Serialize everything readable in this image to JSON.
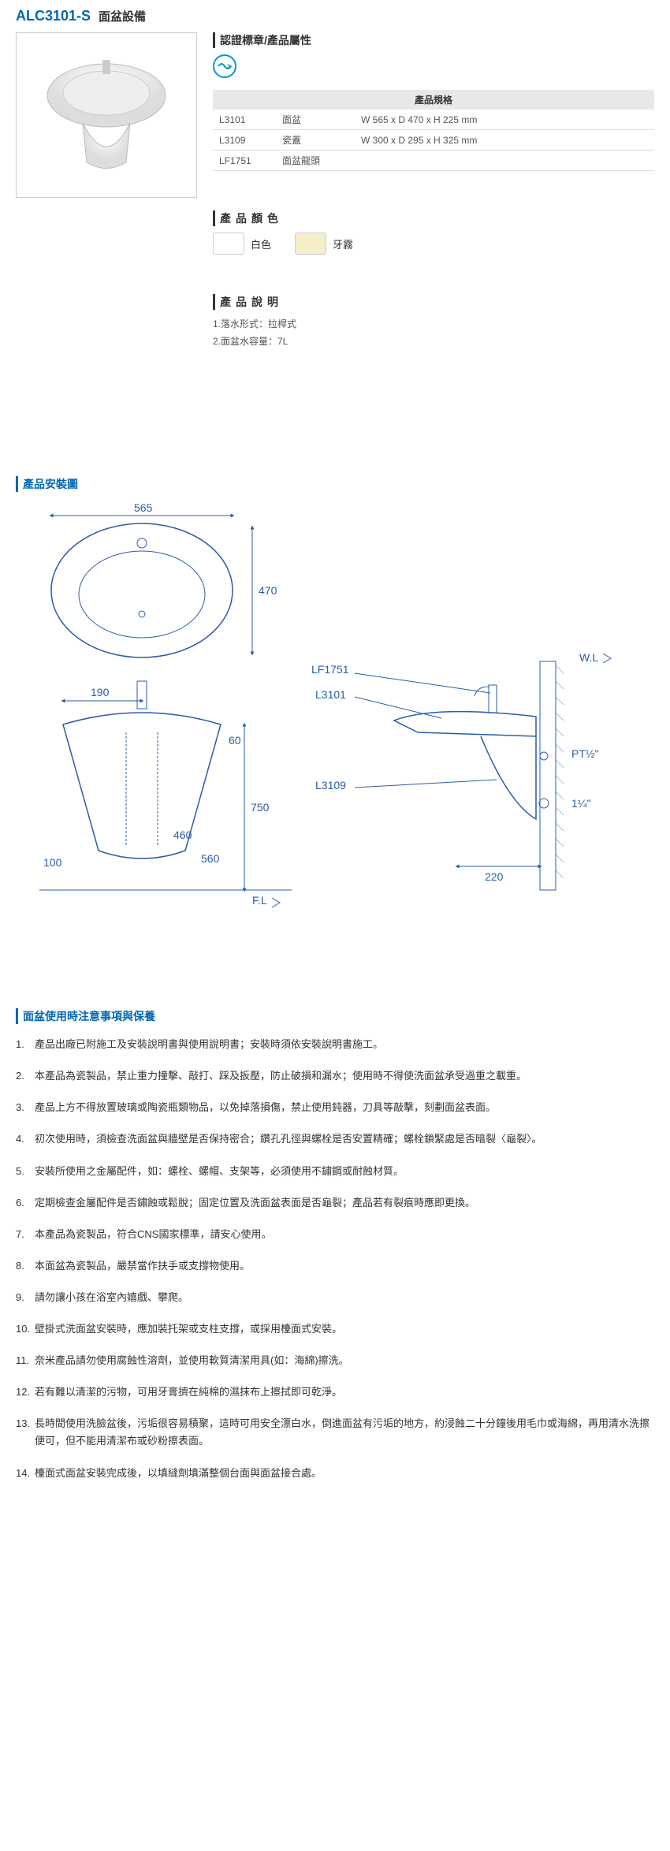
{
  "header": {
    "code": "ALC3101-S",
    "title": "面盆設備"
  },
  "cert_heading": "認證標章/產品屬性",
  "spec_table": {
    "header": "產品規格",
    "rows": [
      {
        "code": "L3101",
        "name": "面盆",
        "dim": "W 565 x D 470 x H 225 mm"
      },
      {
        "code": "L3109",
        "name": "瓷蓋",
        "dim": "W 300 x D 295 x H 325 mm"
      },
      {
        "code": "LF1751",
        "name": "面盆龍頭",
        "dim": ""
      }
    ]
  },
  "color_heading": "產品顏色",
  "colors": [
    {
      "label": "白色",
      "hex": "#ffffff"
    },
    {
      "label": "牙霧",
      "hex": "#f5eec8"
    }
  ],
  "desc_heading": "產品說明",
  "desc_items": [
    "1.落水形式：拉桿式",
    "2.面盆水容量：7L"
  ],
  "install_heading": "產品安裝圖",
  "diagram": {
    "dims": {
      "top_width": "565",
      "top_depth": "470",
      "front_faucet_offset": "190",
      "front_left": "100",
      "front_h1": "460",
      "front_h2": "560",
      "front_total": "750",
      "front_top_gap": "60",
      "side_depth": "220",
      "fl_label": "F.L",
      "wl_label": "W.L"
    },
    "labels": {
      "lf1751": "LF1751",
      "l3101": "L3101",
      "l3109": "L3109",
      "pt": "PT½\"",
      "drain": "1¼\""
    },
    "stroke_color": "#2a5caa",
    "text_color": "#2a5caa",
    "text_size": 14
  },
  "notes_heading": "面盆使用時注意事項與保養",
  "notes": [
    "產品出廠已附施工及安裝說明書與使用說明書；安裝時須依安裝說明書施工。",
    "本產品為瓷製品，禁止重力撞擊、敲打、踩及扳壓，防止破損和漏水；使用時不得使洗面盆承受過重之載重。",
    "產品上方不得放置玻璃或陶瓷瓶類物品，以免掉落損傷，禁止使用鈍器，刀具等敲擊，刻劃面盆表面。",
    "初次使用時，須檢查洗面盆與牆壁是否保持密合；鑽孔孔徑與螺栓是否安置精確；螺栓鎖緊處是否暗裂〈龜裂〉。",
    "安裝所使用之金屬配件，如：螺栓、螺帽、支架等，必須使用不鏽鋼或耐蝕材質。",
    "定期檢查金屬配件是否鏽蝕或鬆脫；固定位置及洗面盆表面是否龜裂；產品若有裂痕時應即更換。",
    "本產品為瓷製品，符合CNS國家標準，請安心使用。",
    "本面盆為瓷製品，嚴禁當作扶手或支撐物使用。",
    "請勿讓小孩在浴室內嬉戲、攀爬。",
    "壁掛式洗面盆安裝時，應加裝托架或支柱支撐，或採用檯面式安裝。",
    "奈米產品請勿使用腐蝕性溶劑，並使用軟質清潔用具(如：海綿)擦洗。",
    "若有難以清潔的污物，可用牙膏擠在純棉的濕抹布上擦拭即可乾淨。",
    "長時間使用洗臉盆後，污垢很容易積聚，這時可用安全漂白水，倒進面盆有污垢的地方，約浸蝕二十分鐘後用毛巾或海綿，再用清水洗擦便可，但不能用清潔布或砂粉擦表面。",
    "檯面式面盆安裝完成後，以填縫劑填滿整個台面與面盆接合處。"
  ]
}
